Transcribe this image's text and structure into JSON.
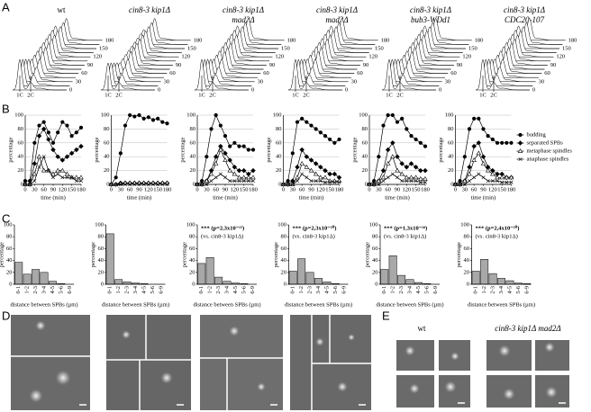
{
  "panel_labels": [
    "A",
    "B",
    "C",
    "D",
    "E"
  ],
  "strains": [
    [
      "wt"
    ],
    [
      "cin8-3 kip1Δ"
    ],
    [
      "cin8-3 kip1Δ",
      "mad2Δ"
    ],
    [
      "cin8-3 kip1Δ",
      "mad3Δ"
    ],
    [
      "cin8-3 kip1Δ",
      "bub3-WDd1"
    ],
    [
      "cin8-3 kip1Δ",
      "CDC20-107"
    ]
  ],
  "panel_a": {
    "time_ticks": [
      0,
      30,
      60,
      90,
      120,
      150,
      180
    ],
    "peak_labels": [
      "1C",
      "2C"
    ]
  },
  "chart_data": [
    {
      "type": "line",
      "x": [
        0,
        15,
        30,
        45,
        60,
        75,
        90,
        105,
        120,
        135,
        150,
        165,
        180
      ],
      "xlim": [
        0,
        180
      ],
      "xticks": [
        0,
        30,
        60,
        90,
        120,
        150,
        180
      ],
      "ylim": [
        0,
        100
      ],
      "yticks": [
        0,
        20,
        40,
        60,
        80,
        100
      ],
      "grid": true,
      "xlabel": "time (min)",
      "ylabel": "percentage",
      "series": [
        {
          "marker": "circle",
          "color": "#000000",
          "values": [
            5,
            5,
            60,
            85,
            90,
            75,
            60,
            75,
            90,
            85,
            70,
            75,
            82
          ]
        },
        {
          "marker": "diamond",
          "color": "#000000",
          "values": [
            0,
            0,
            30,
            70,
            80,
            65,
            50,
            40,
            35,
            40,
            45,
            50,
            55
          ]
        },
        {
          "marker": "triangle",
          "color": "#000000",
          "values": [
            0,
            0,
            15,
            40,
            20,
            20,
            15,
            20,
            20,
            15,
            10,
            10,
            10
          ]
        },
        {
          "marker": "cross",
          "color": "#000000",
          "values": [
            0,
            0,
            5,
            25,
            40,
            20,
            10,
            15,
            10,
            10,
            10,
            5,
            5
          ]
        }
      ]
    },
    {
      "type": "line",
      "x": [
        0,
        15,
        30,
        45,
        60,
        75,
        90,
        105,
        120,
        135,
        150,
        165,
        180
      ],
      "xlim": [
        0,
        180
      ],
      "xticks": [
        0,
        30,
        60,
        90,
        120,
        150,
        180
      ],
      "ylim": [
        0,
        100
      ],
      "yticks": [
        0,
        20,
        40,
        60,
        80,
        100
      ],
      "grid": true,
      "xlabel": "time (min)",
      "ylabel": "percentage",
      "series": [
        {
          "marker": "circle",
          "color": "#000000",
          "values": [
            0,
            10,
            45,
            85,
            100,
            98,
            100,
            95,
            97,
            93,
            95,
            90,
            88
          ]
        },
        {
          "marker": "diamond",
          "color": "#000000",
          "values": [
            0,
            0,
            2,
            2,
            2,
            2,
            2,
            2,
            2,
            2,
            2,
            2,
            2
          ]
        },
        {
          "marker": "triangle",
          "color": "#000000",
          "values": [
            0,
            0,
            1,
            2,
            2,
            2,
            2,
            2,
            2,
            2,
            2,
            2,
            2
          ]
        },
        {
          "marker": "cross",
          "color": "#000000",
          "values": [
            0,
            0,
            0,
            0,
            0,
            0,
            0,
            0,
            0,
            0,
            0,
            0,
            0
          ]
        }
      ]
    },
    {
      "type": "line",
      "x": [
        0,
        15,
        30,
        45,
        60,
        75,
        90,
        105,
        120,
        135,
        150,
        165,
        180
      ],
      "xlim": [
        0,
        180
      ],
      "xticks": [
        0,
        30,
        60,
        90,
        120,
        150,
        180
      ],
      "ylim": [
        0,
        100
      ],
      "yticks": [
        0,
        20,
        40,
        60,
        80,
        100
      ],
      "grid": true,
      "xlabel": "time (min)",
      "ylabel": "percentage",
      "series": [
        {
          "marker": "circle",
          "color": "#000000",
          "values": [
            0,
            5,
            40,
            80,
            100,
            85,
            70,
            55,
            60,
            55,
            55,
            50,
            50
          ]
        },
        {
          "marker": "diamond",
          "color": "#000000",
          "values": [
            0,
            0,
            5,
            20,
            40,
            55,
            45,
            35,
            25,
            20,
            20,
            15,
            20
          ]
        },
        {
          "marker": "triangle",
          "color": "#000000",
          "values": [
            0,
            0,
            5,
            15,
            30,
            50,
            35,
            20,
            15,
            10,
            10,
            10,
            10
          ]
        },
        {
          "marker": "cross",
          "color": "#000000",
          "values": [
            0,
            0,
            0,
            5,
            10,
            15,
            10,
            5,
            5,
            5,
            5,
            5,
            5
          ]
        }
      ]
    },
    {
      "type": "line",
      "x": [
        0,
        15,
        30,
        45,
        60,
        75,
        90,
        105,
        120,
        135,
        150,
        165,
        180
      ],
      "xlim": [
        0,
        180
      ],
      "xticks": [
        0,
        30,
        60,
        90,
        120,
        150,
        180
      ],
      "ylim": [
        0,
        100
      ],
      "yticks": [
        0,
        20,
        40,
        60,
        80,
        100
      ],
      "grid": true,
      "xlabel": "time (min)",
      "ylabel": "percentage",
      "series": [
        {
          "marker": "circle",
          "color": "#000000",
          "values": [
            0,
            5,
            45,
            90,
            95,
            90,
            85,
            80,
            75,
            70,
            65,
            60,
            65
          ]
        },
        {
          "marker": "diamond",
          "color": "#000000",
          "values": [
            0,
            0,
            5,
            25,
            50,
            40,
            35,
            30,
            25,
            20,
            15,
            15,
            10
          ]
        },
        {
          "marker": "triangle",
          "color": "#000000",
          "values": [
            0,
            0,
            0,
            10,
            30,
            25,
            20,
            15,
            10,
            10,
            5,
            5,
            5
          ]
        },
        {
          "marker": "cross",
          "color": "#000000",
          "values": [
            0,
            0,
            0,
            5,
            15,
            10,
            5,
            5,
            5,
            3,
            3,
            3,
            3
          ]
        }
      ]
    },
    {
      "type": "line",
      "x": [
        0,
        15,
        30,
        45,
        60,
        75,
        90,
        105,
        120,
        135,
        150,
        165,
        180
      ],
      "xlim": [
        0,
        180
      ],
      "xticks": [
        0,
        30,
        60,
        90,
        120,
        150,
        180
      ],
      "ylim": [
        0,
        100
      ],
      "yticks": [
        0,
        20,
        40,
        60,
        80,
        100
      ],
      "grid": true,
      "xlabel": "time (min)",
      "ylabel": "percentage",
      "series": [
        {
          "marker": "circle",
          "color": "#000000",
          "values": [
            0,
            5,
            40,
            85,
            100,
            100,
            90,
            95,
            80,
            70,
            65,
            60,
            55
          ]
        },
        {
          "marker": "diamond",
          "color": "#000000",
          "values": [
            0,
            0,
            5,
            20,
            50,
            60,
            40,
            30,
            25,
            30,
            25,
            20,
            20
          ]
        },
        {
          "marker": "triangle",
          "color": "#000000",
          "values": [
            0,
            0,
            5,
            10,
            30,
            40,
            20,
            15,
            10,
            10,
            10,
            8,
            8
          ]
        },
        {
          "marker": "cross",
          "color": "#000000",
          "values": [
            0,
            0,
            0,
            5,
            10,
            15,
            10,
            5,
            5,
            5,
            5,
            3,
            3
          ]
        }
      ]
    },
    {
      "type": "line",
      "x": [
        0,
        15,
        30,
        45,
        60,
        75,
        90,
        105,
        120,
        135,
        150,
        165,
        180
      ],
      "xlim": [
        0,
        180
      ],
      "xticks": [
        0,
        30,
        60,
        90,
        120,
        150,
        180
      ],
      "ylim": [
        0,
        100
      ],
      "yticks": [
        0,
        20,
        40,
        60,
        80,
        100
      ],
      "grid": true,
      "xlabel": "time (min)",
      "ylabel": "percentage",
      "legend": "right",
      "series": [
        {
          "name": "budding",
          "marker": "circle",
          "color": "#000000",
          "values": [
            0,
            5,
            40,
            80,
            95,
            95,
            80,
            70,
            65,
            60,
            60,
            60,
            60
          ]
        },
        {
          "name": "separated SPBs",
          "marker": "diamond",
          "color": "#000000",
          "values": [
            0,
            0,
            5,
            25,
            55,
            60,
            40,
            25,
            20,
            15,
            15,
            10,
            10
          ]
        },
        {
          "name": "metaphase spindles",
          "marker": "triangle",
          "color": "#000000",
          "values": [
            0,
            0,
            5,
            15,
            35,
            45,
            30,
            20,
            15,
            10,
            10,
            10,
            10
          ]
        },
        {
          "name": "anaphase spindles",
          "marker": "cross",
          "color": "#000000",
          "values": [
            0,
            0,
            0,
            5,
            10,
            15,
            10,
            5,
            5,
            5,
            3,
            3,
            3
          ]
        }
      ]
    },
    {
      "type": "bar",
      "categories": [
        "0-1",
        "1-2",
        "2-3",
        "3-4",
        "4-5",
        "5-6",
        "6-9"
      ],
      "values": [
        37,
        17,
        25,
        20,
        5,
        1,
        0
      ],
      "color": "#a8a8a8",
      "ylim": [
        0,
        100
      ],
      "yticks": [
        0,
        20,
        40,
        60,
        80,
        100
      ],
      "xlabel": "distance between SPBs (µm)",
      "ylabel": "percentage"
    },
    {
      "type": "bar",
      "categories": [
        "0-1",
        "1-2",
        "2-3",
        "3-4",
        "4-5",
        "5-6",
        "6-9"
      ],
      "values": [
        85,
        8,
        4,
        2,
        1,
        0,
        0
      ],
      "color": "#a8a8a8",
      "ylim": [
        0,
        100
      ],
      "yticks": [
        0,
        20,
        40,
        60,
        80,
        100
      ],
      "xlabel": "distance between SPBs (µm)",
      "ylabel": "percentage"
    },
    {
      "type": "bar",
      "categories": [
        "0-1",
        "1-2",
        "2-3",
        "3-4",
        "4-5",
        "5-6",
        "6-9"
      ],
      "values": [
        35,
        45,
        12,
        5,
        2,
        1,
        0
      ],
      "color": "#a8a8a8",
      "ylim": [
        0,
        100
      ],
      "yticks": [
        0,
        20,
        40,
        60,
        80,
        100
      ],
      "xlabel": "distance between SPBs (µm)",
      "ylabel": "percentage",
      "annotation": [
        "*** (p=2,3x10⁻¹⁵)",
        "(vs. cin8-3 kip1Δ)"
      ]
    },
    {
      "type": "bar",
      "categories": [
        "0-1",
        "1-2",
        "2-3",
        "3-4",
        "4-5",
        "5-6",
        "6-9"
      ],
      "values": [
        22,
        43,
        20,
        10,
        4,
        1,
        0
      ],
      "color": "#a8a8a8",
      "ylim": [
        0,
        100
      ],
      "yticks": [
        0,
        20,
        40,
        60,
        80,
        100
      ],
      "xlabel": "distance between SPBs (µm)",
      "ylabel": "percentage",
      "annotation": [
        "*** (p=2,3x10⁻²⁰)",
        "(vs. cin8-3 kip1Δ)"
      ]
    },
    {
      "type": "bar",
      "categories": [
        "0-1",
        "1-2",
        "2-3",
        "3-4",
        "4-5",
        "5-6",
        "6-9"
      ],
      "values": [
        25,
        48,
        15,
        8,
        3,
        1,
        0
      ],
      "color": "#a8a8a8",
      "ylim": [
        0,
        100
      ],
      "yticks": [
        0,
        20,
        40,
        60,
        80,
        100
      ],
      "xlabel": "distance between SPBs (µm)",
      "ylabel": "percentage",
      "annotation": [
        "*** (p=1,3x10⁻¹⁸)",
        "(vs. cin8-3 kip1Δ)"
      ]
    },
    {
      "type": "bar",
      "categories": [
        "0-1",
        "1-2",
        "2-3",
        "3-4",
        "4-5",
        "5-6",
        "6-9"
      ],
      "values": [
        22,
        42,
        18,
        10,
        6,
        2,
        1
      ],
      "color": "#a8a8a8",
      "ylim": [
        0,
        100
      ],
      "yticks": [
        0,
        20,
        40,
        60,
        80,
        100
      ],
      "xlabel": "distance between SPBs (µm)",
      "ylabel": "percentage",
      "annotation": [
        "*** (p=2,4x10⁻²⁰)",
        "(vs. cin8-3 kip1Δ)"
      ]
    }
  ],
  "panel_e": {
    "labels": [
      "wt",
      "cin8-3 kip1Δ mad2Δ"
    ]
  }
}
